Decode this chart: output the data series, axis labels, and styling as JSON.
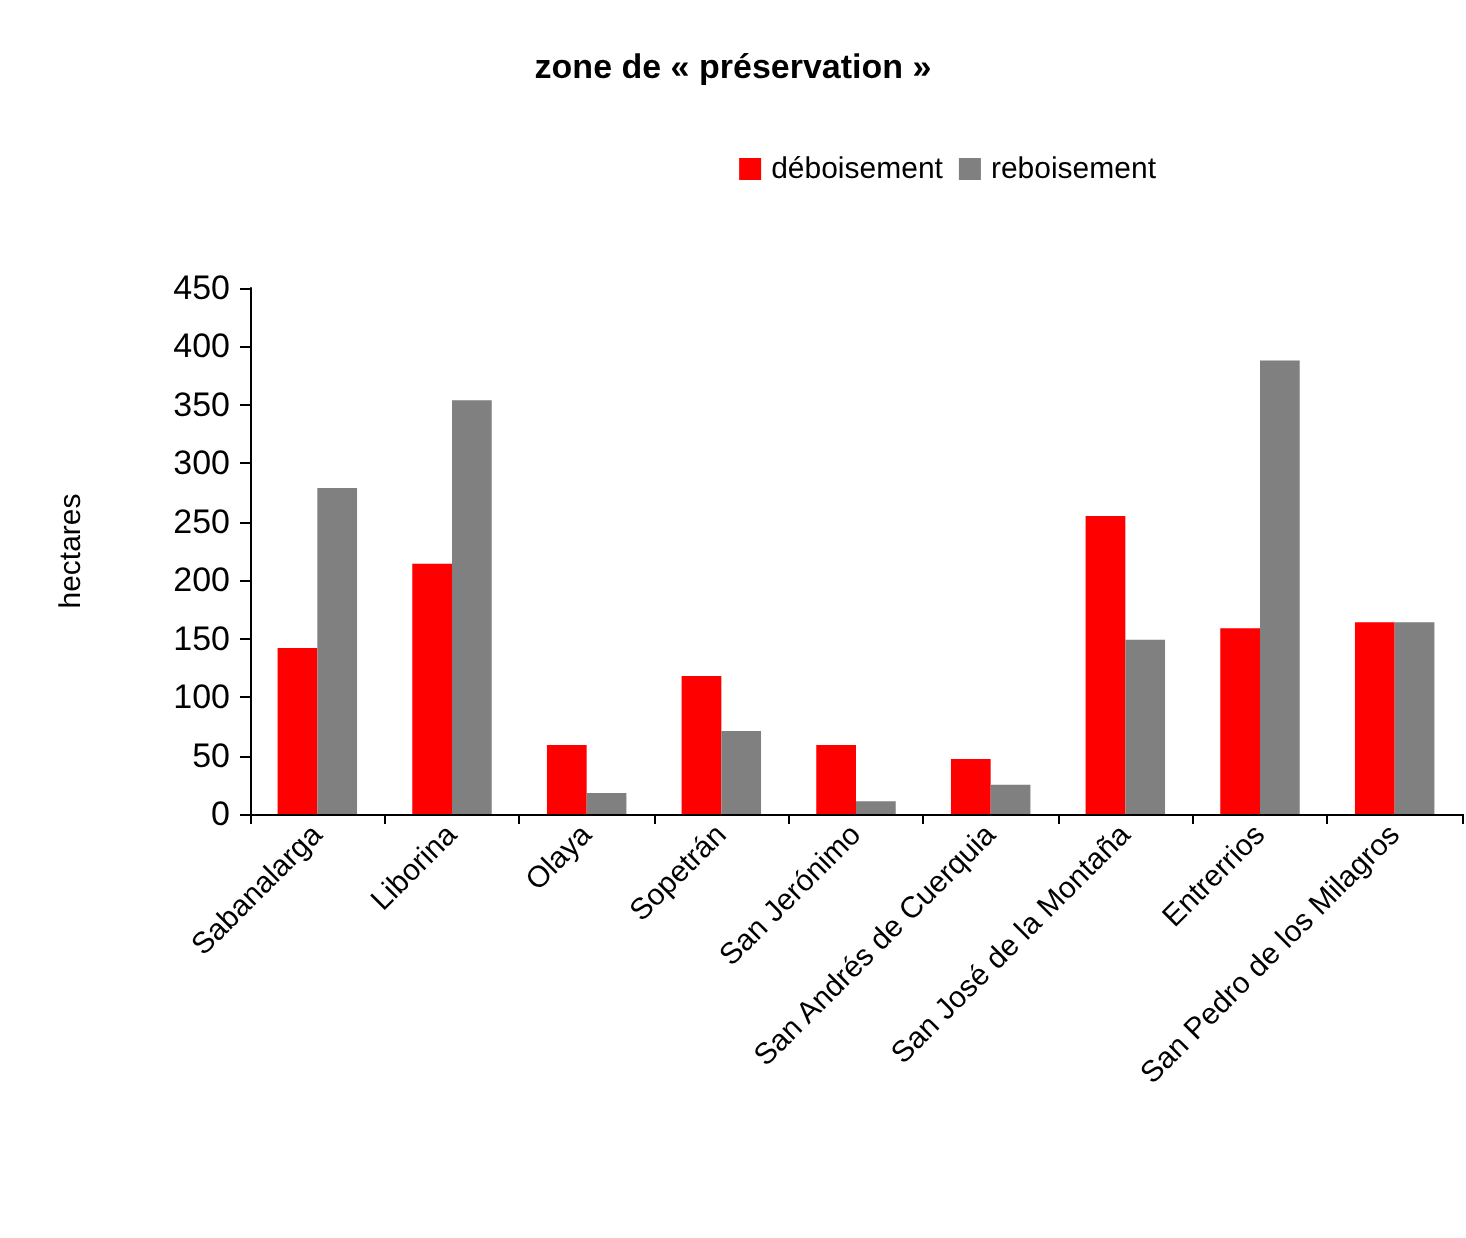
{
  "chart_data": {
    "type": "bar",
    "title": "zone de « préservation »",
    "ylabel": "hectares",
    "categories": [
      "Sabanalarga",
      "Liborina",
      "Olaya",
      "Sopetrán",
      "San Jerónimo",
      "San Andrés de Cuerquia",
      "San José de la Montaña",
      "Entrerrios",
      "San Pedro de los Milagros"
    ],
    "series": [
      {
        "name": "déboisement",
        "color": "#ff0000",
        "values": [
          142,
          214,
          59,
          118,
          59,
          47,
          255,
          159,
          164
        ]
      },
      {
        "name": "reboisement",
        "color": "#808080",
        "values": [
          279,
          354,
          18,
          71,
          11,
          25,
          149,
          388,
          164
        ]
      }
    ],
    "ylim": [
      0,
      450
    ],
    "yticks": [
      0,
      50,
      100,
      150,
      200,
      250,
      300,
      350,
      400,
      450
    ],
    "grid": false,
    "legend": "top right"
  }
}
